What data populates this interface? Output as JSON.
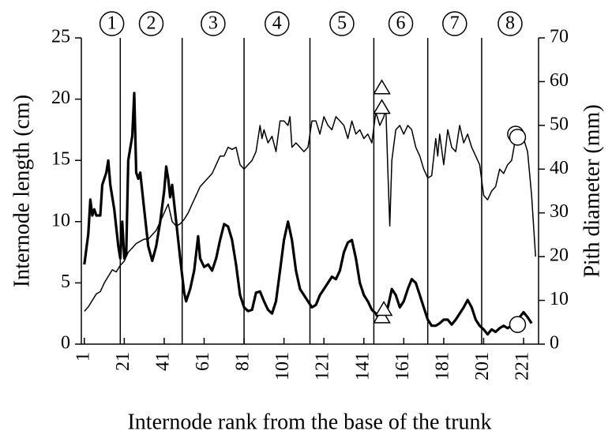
{
  "chart_data": {
    "type": "line",
    "xlabel": "Internode rank from the base of the trunk",
    "ylabel": "Internode length (cm)",
    "y2label": "Pith diameter (mm)",
    "xlim": [
      -0.5,
      228.5
    ],
    "xticks": [
      1,
      21,
      41,
      61,
      81,
      101,
      121,
      141,
      161,
      181,
      201,
      221
    ],
    "ylim": [
      0,
      25
    ],
    "yticks": [
      0,
      5,
      10,
      15,
      20,
      25
    ],
    "y2lim": [
      0,
      70
    ],
    "y2ticks": [
      0,
      10,
      20,
      30,
      40,
      50,
      60,
      70
    ],
    "zones": [
      "1",
      "2",
      "3",
      "4",
      "5",
      "6",
      "7",
      "8"
    ],
    "zone_boundaries": [
      19,
      50,
      81,
      114,
      146,
      173,
      200
    ],
    "series": [
      {
        "color": "#000000",
        "line_width": 3.2,
        "axis": "y",
        "x": [
          1,
          3,
          4,
          5,
          6,
          7,
          9,
          10,
          12,
          13,
          14,
          16,
          18,
          19,
          20,
          21,
          22,
          23,
          25,
          26,
          27,
          28,
          29,
          31,
          33,
          35,
          37,
          39,
          41,
          42,
          43,
          44,
          45,
          47,
          49,
          51,
          52,
          54,
          56,
          58,
          59,
          61,
          63,
          65,
          67,
          69,
          71,
          73,
          75,
          77,
          79,
          81,
          83,
          85,
          87,
          89,
          91,
          93,
          95,
          97,
          99,
          101,
          103,
          105,
          107,
          109,
          111,
          113,
          115,
          117,
          119,
          121,
          123,
          125,
          127,
          129,
          131,
          133,
          135,
          137,
          139,
          141,
          143,
          145,
          147,
          149,
          151,
          153,
          155,
          157,
          159,
          161,
          163,
          165,
          167,
          169,
          171,
          173,
          175,
          177,
          179,
          181,
          183,
          185,
          187,
          189,
          191,
          193,
          195,
          197,
          199,
          201,
          203,
          205,
          207,
          209,
          211,
          213,
          215,
          217,
          219,
          221,
          223,
          225
        ],
        "values": [
          6.5,
          9,
          11.8,
          10.5,
          11,
          10.5,
          10.5,
          13,
          14,
          15,
          13,
          11,
          8,
          7,
          10,
          7,
          7.5,
          15,
          17,
          20.5,
          14,
          13.5,
          14,
          11,
          8,
          6.8,
          8,
          10,
          12.5,
          14.5,
          13.5,
          12,
          13,
          10,
          7,
          4.2,
          3.5,
          4.5,
          6,
          8.8,
          7,
          6.3,
          6.5,
          6,
          7,
          8.5,
          9.8,
          9.6,
          8.5,
          6.5,
          4,
          3,
          2.7,
          2.8,
          4.2,
          4.3,
          3.5,
          2.8,
          2.5,
          3.5,
          6,
          8.5,
          10,
          8.5,
          6,
          4.5,
          4,
          3.5,
          3,
          3.2,
          4,
          4.5,
          5,
          5.5,
          5.3,
          6,
          7.5,
          8.3,
          8.5,
          7,
          5,
          4,
          3.5,
          2.8,
          2.5,
          2,
          2.3,
          3,
          4.5,
          4,
          3,
          3.5,
          4.5,
          5.3,
          5,
          4,
          3,
          2,
          1.5,
          1.5,
          1.7,
          2,
          2,
          1.6,
          2,
          2.5,
          3,
          3.6,
          3,
          2,
          1.5,
          1.2,
          0.8,
          1.2,
          1,
          1.3,
          1.5,
          1.3,
          1.5,
          1.8,
          2.2,
          2.6,
          2.2,
          1.7
        ]
      },
      {
        "color": "#000000",
        "line_width": 1.5,
        "axis": "y2",
        "x": [
          1,
          3,
          5,
          7,
          9,
          11,
          13,
          15,
          17,
          19,
          21,
          23,
          25,
          27,
          29,
          31,
          33,
          35,
          37,
          39,
          41,
          43,
          45,
          47,
          49,
          51,
          53,
          55,
          57,
          59,
          61,
          63,
          65,
          67,
          69,
          71,
          73,
          75,
          77,
          79,
          81,
          83,
          85,
          87,
          89,
          90,
          91,
          93,
          95,
          97,
          99,
          101,
          103,
          104,
          105,
          107,
          109,
          111,
          113,
          115,
          117,
          119,
          121,
          123,
          125,
          127,
          129,
          131,
          133,
          135,
          137,
          139,
          141,
          143,
          145,
          147,
          149,
          151,
          152,
          153,
          154,
          155,
          157,
          159,
          161,
          163,
          165,
          167,
          169,
          171,
          173,
          175,
          177,
          178,
          179,
          181,
          183,
          185,
          187,
          189,
          191,
          193,
          195,
          197,
          199,
          201,
          203,
          205,
          207,
          209,
          211,
          213,
          215,
          217,
          219,
          221,
          223,
          225,
          227
        ],
        "values": [
          7.5,
          8.5,
          10,
          11.5,
          12,
          14,
          15.5,
          17,
          16.5,
          18,
          19,
          21,
          22,
          23,
          23.5,
          24,
          24,
          25,
          26,
          28,
          30,
          32,
          28,
          27,
          27.5,
          28.5,
          30,
          32,
          34,
          36,
          37,
          38,
          39,
          41,
          43,
          43,
          45,
          44.5,
          45,
          41,
          40,
          41,
          42,
          44,
          50,
          47,
          49,
          46,
          47.5,
          44,
          51,
          51,
          50,
          52,
          45,
          46,
          45,
          44,
          45,
          51,
          51,
          48,
          52,
          50,
          49,
          52,
          51,
          50,
          47,
          51,
          48,
          49,
          47,
          48,
          46,
          53,
          50,
          52,
          54,
          40,
          27,
          42,
          49,
          50,
          48,
          50,
          49,
          45,
          43,
          40,
          38,
          38.5,
          47,
          43,
          48,
          41,
          49,
          45,
          44,
          50,
          46,
          48,
          45,
          43,
          41,
          34,
          33,
          35,
          36,
          40,
          39,
          41,
          42,
          47,
          48,
          47,
          44,
          34,
          20
        ]
      }
    ],
    "markers": [
      {
        "shape": "triangle",
        "axis": "y2",
        "x": [
          150,
          150
        ],
        "values": [
          54,
          58.5
        ]
      },
      {
        "shape": "triangle",
        "axis": "y",
        "x": [
          150,
          151
        ],
        "values": [
          2.2,
          2.8
        ]
      },
      {
        "shape": "circle",
        "axis": "y2",
        "x": [
          217,
          218
        ],
        "values": [
          48,
          47.3
        ]
      },
      {
        "shape": "circle",
        "axis": "y",
        "x": [
          218
        ],
        "values": [
          1.6
        ]
      }
    ]
  }
}
